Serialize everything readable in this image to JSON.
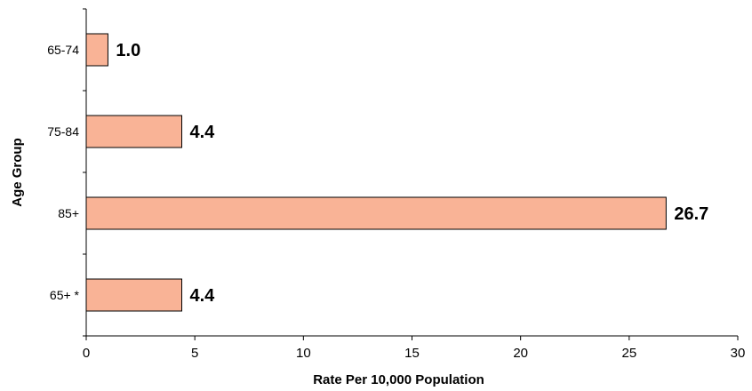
{
  "chart_data": {
    "type": "bar",
    "orientation": "horizontal",
    "categories": [
      "65-74",
      "75-84",
      "85+",
      "65+ *"
    ],
    "values": [
      1.0,
      4.4,
      26.7,
      4.4
    ],
    "value_labels": [
      "1.0",
      "4.4",
      "26.7",
      "4.4"
    ],
    "xlabel": "Rate Per 10,000 Population",
    "ylabel": "Age Group",
    "xlim": [
      0,
      30
    ],
    "xticks": [
      0,
      5,
      10,
      15,
      20,
      25,
      30
    ],
    "grid": false,
    "legend": "none",
    "colors": {
      "bar_fill": "#f9b396",
      "bar_stroke": "#000000"
    }
  }
}
